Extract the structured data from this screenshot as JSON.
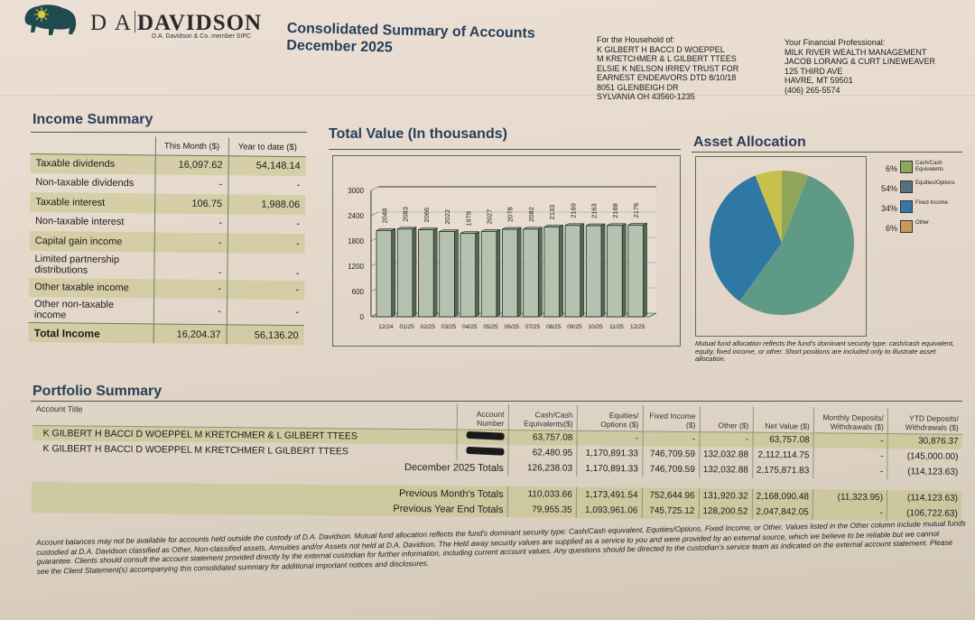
{
  "header": {
    "brand_prefix": "D A",
    "brand_name": "DAVIDSON",
    "brand_subtitle": "D.A. Davidson & Co. member SIPC",
    "title_line1": "Consolidated Summary of Accounts",
    "title_line2": "December 2025",
    "logo_icon": "bison-sun-icon"
  },
  "household": {
    "label": "For the Household of:",
    "lines": [
      "K GILBERT H BACCI D WOEPPEL",
      "M KRETCHMER & L GILBERT TTEES",
      "ELSIE K NELSON IRREV TRUST FOR",
      "EARNEST ENDEAVORS DTD 8/10/18",
      "8051 GLENBEIGH DR",
      "SYLVANIA OH  43560-1235"
    ]
  },
  "advisor": {
    "label": "Your Financial Professional:",
    "lines": [
      "MILK RIVER WEALTH MANAGEMENT",
      "JACOB LORANG & CURT LINEWEAVER",
      "125 THIRD AVE",
      "HAVRE, MT 59501",
      "(406) 265-5574"
    ]
  },
  "income_summary": {
    "heading": "Income Summary",
    "col_month": "This Month ($)",
    "col_ytd": "Year to date ($)",
    "rows": [
      {
        "label": "Taxable dividends",
        "month": "16,097.62",
        "ytd": "54,148.14"
      },
      {
        "label": "Non-taxable dividends",
        "month": "-",
        "ytd": "-"
      },
      {
        "label": "Taxable interest",
        "month": "106.75",
        "ytd": "1,988.06"
      },
      {
        "label": "Non-taxable interest",
        "month": "-",
        "ytd": "-"
      },
      {
        "label": "Capital gain income",
        "month": "-",
        "ytd": "-"
      },
      {
        "label": "Limited partnership distributions",
        "month": "-",
        "ytd": "-"
      },
      {
        "label": "Other taxable income",
        "month": "-",
        "ytd": "-"
      },
      {
        "label": "Other non-taxable income",
        "month": "-",
        "ytd": "-"
      }
    ],
    "total": {
      "label": "Total Income",
      "month": "16,204.37",
      "ytd": "56,136.20"
    }
  },
  "total_value": {
    "heading": "Total Value (In thousands)"
  },
  "asset_allocation": {
    "heading": "Asset Allocation",
    "note": "Mutual fund allocation reflects the fund's dominant security type: cash/cash equivalent, equity, fixed income, or other. Short positions are included only to illustrate asset allocation."
  },
  "chart_data": [
    {
      "type": "bar",
      "title": "Total Value (In thousands)",
      "xlabel": "",
      "ylabel": "",
      "categories": [
        "12/24",
        "01/25",
        "02/25",
        "03/25",
        "04/25",
        "05/25",
        "06/25",
        "07/25",
        "08/25",
        "09/25",
        "10/25",
        "11/25",
        "12/25"
      ],
      "values": [
        2048,
        2083,
        2066,
        2022,
        1978,
        2027,
        2078,
        2082,
        2133,
        2169,
        2163,
        2168,
        2176
      ],
      "yticks": [
        0,
        600,
        1200,
        1800,
        2400,
        3000
      ],
      "ylim": [
        0,
        3000
      ],
      "grid": true,
      "data_labels": true
    },
    {
      "type": "pie",
      "title": "Asset Allocation",
      "legend_position": "right",
      "slices": [
        {
          "label": "Cash/Cash Equivalents",
          "percent": 6,
          "color": "#8fa65a"
        },
        {
          "label": "Equities/Options",
          "percent": 54,
          "color": "#5f9a86"
        },
        {
          "label": "Fixed Income",
          "percent": 34,
          "color": "#2f78a6"
        },
        {
          "label": "Other",
          "percent": 6,
          "color": "#c9bf4e"
        }
      ],
      "legend_colors": [
        "#8fa65a",
        "#5a6f7c",
        "#3477a8",
        "#c99a5a"
      ]
    }
  ],
  "portfolio_summary": {
    "heading": "Portfolio Summary",
    "columns": [
      "Account Title",
      "Account Number",
      "Cash/Cash Equivalents($)",
      "Equities/ Options ($)",
      "Fixed Income ($)",
      "Other ($)",
      "Net Value ($)",
      "Monthly Deposits/ Withdrawals ($)",
      "YTD Deposits/ Withdrawals ($)"
    ],
    "accounts": [
      {
        "title": "K GILBERT H BACCI D WOEPPEL M KRETCHMER & L GILBERT TTEES",
        "number": "[redacted]",
        "cash": "63,757.08",
        "equities": "-",
        "fixed": "-",
        "other": "-",
        "net": "63,757.08",
        "monthly": "-",
        "ytd": "30,876.37"
      },
      {
        "title": "K GILBERT H BACCI D WOEPPEL M KRETCHMER L GILBERT TTEES",
        "number": "[redacted]",
        "cash": "62,480.95",
        "equities": "1,170,891.33",
        "fixed": "746,709.59",
        "other": "132,032.88",
        "net": "2,112,114.75",
        "monthly": "-",
        "ytd": "(145,000.00)"
      }
    ],
    "totals": [
      {
        "label": "December 2025 Totals",
        "cash": "126,238.03",
        "equities": "1,170,891.33",
        "fixed": "746,709.59",
        "other": "132,032.88",
        "net": "2,175,871.83",
        "monthly": "-",
        "ytd": "(114,123.63)"
      },
      {
        "label": "Previous Month's Totals",
        "cash": "110,033.66",
        "equities": "1,173,491.54",
        "fixed": "752,644.96",
        "other": "131,920.32",
        "net": "2,168,090.48",
        "monthly": "(11,323.95)",
        "ytd": "(114,123.63)"
      },
      {
        "label": "Previous Year End Totals",
        "cash": "79,955.35",
        "equities": "1,093,961.06",
        "fixed": "745,725.12",
        "other": "128,200.52",
        "net": "2,047,842.05",
        "monthly": "-",
        "ytd": "(106,722.63)"
      }
    ]
  },
  "disclaimer": "Account balances may not be available for accounts held outside the custody of D.A. Davidson. Mutual fund allocation reflects the fund's dominant security type: Cash/Cash equivalent, Equities/Options, Fixed Income, or Other. Values listed in the Other column include mutual funds custodied at D.A. Davidson classified as Other, Non-classified assets, Annuities and/or Assets not held at D.A. Davidson. The Held away security values are supplied as a service to you and were provided by an external source, which we believe to be reliable but we cannot guarantee. Clients should consult the account statement provided directly by the external custodian for further information, including current account values. Any questions should be directed to the custodian's service team as indicated on the external account statement. Please see the Client Statement(s) accompanying this consolidated summary for additional important notices and disclosures."
}
